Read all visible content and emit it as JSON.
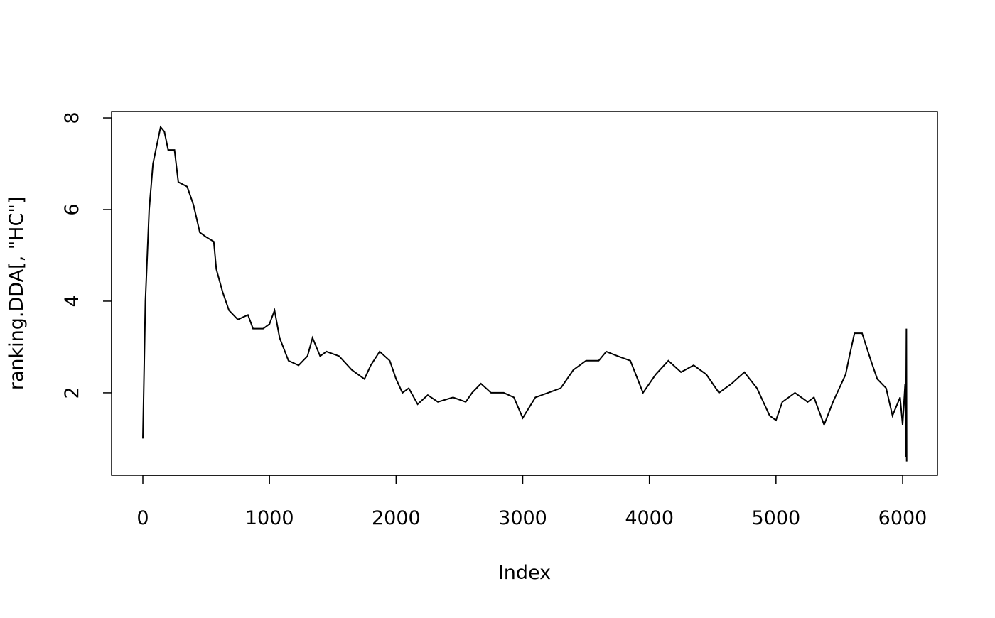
{
  "chart_data": {
    "type": "line",
    "xlabel": "Index",
    "ylabel": "ranking.DDA[, \"HC\"]",
    "xlim": [
      -247,
      6275
    ],
    "ylim": [
      0.2,
      8.14
    ],
    "xticks": [
      0,
      1000,
      2000,
      3000,
      4000,
      5000,
      6000
    ],
    "yticks": [
      2,
      4,
      6,
      8
    ],
    "color": "#000000",
    "x": [
      0,
      20,
      50,
      80,
      110,
      140,
      170,
      200,
      250,
      280,
      350,
      400,
      450,
      500,
      560,
      580,
      630,
      680,
      750,
      830,
      870,
      950,
      1000,
      1040,
      1080,
      1150,
      1230,
      1300,
      1340,
      1400,
      1450,
      1550,
      1650,
      1750,
      1800,
      1870,
      1950,
      2000,
      2050,
      2100,
      2170,
      2250,
      2330,
      2450,
      2550,
      2600,
      2670,
      2750,
      2850,
      2930,
      3000,
      3100,
      3200,
      3300,
      3400,
      3500,
      3600,
      3660,
      3750,
      3850,
      3950,
      4050,
      4150,
      4250,
      4350,
      4450,
      4550,
      4650,
      4750,
      4850,
      4950,
      5000,
      5050,
      5150,
      5250,
      5300,
      5380,
      5450,
      5550,
      5580,
      5620,
      5680,
      5750,
      5800,
      5870,
      5920,
      5980,
      6000,
      6020,
      6025,
      6030,
      6032
    ],
    "values": [
      1.0,
      4.0,
      6.0,
      7.0,
      7.4,
      7.8,
      7.7,
      7.3,
      7.3,
      6.6,
      6.5,
      6.1,
      5.5,
      5.4,
      5.3,
      4.7,
      4.2,
      3.8,
      3.6,
      3.7,
      3.4,
      3.4,
      3.5,
      3.8,
      3.2,
      2.7,
      2.6,
      2.8,
      3.2,
      2.8,
      2.9,
      2.8,
      2.5,
      2.3,
      2.6,
      2.9,
      2.7,
      2.3,
      2.0,
      2.1,
      1.75,
      1.95,
      1.8,
      1.9,
      1.8,
      2.0,
      2.2,
      2.0,
      2.0,
      1.9,
      1.45,
      1.9,
      2.0,
      2.1,
      2.5,
      2.7,
      2.7,
      2.9,
      2.8,
      2.7,
      2.0,
      2.4,
      2.7,
      2.45,
      2.6,
      2.4,
      2.0,
      2.2,
      2.45,
      2.1,
      1.5,
      1.4,
      1.8,
      2.0,
      1.8,
      1.9,
      1.3,
      1.8,
      2.4,
      2.8,
      3.3,
      3.3,
      2.7,
      2.3,
      2.1,
      1.5,
      1.9,
      1.3,
      2.2,
      0.6,
      3.4,
      0.5
    ]
  }
}
